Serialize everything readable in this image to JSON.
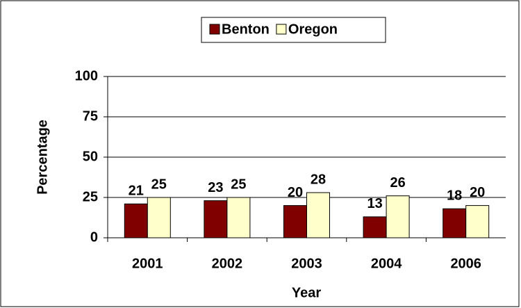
{
  "chart_data": {
    "type": "bar",
    "categories": [
      "2001",
      "2002",
      "2003",
      "2004",
      "2006"
    ],
    "series": [
      {
        "name": "Benton",
        "color": "#800000",
        "values": [
          21,
          23,
          20,
          13,
          18
        ]
      },
      {
        "name": "Oregon",
        "color": "#ffffcc",
        "values": [
          25,
          25,
          28,
          26,
          20
        ]
      }
    ],
    "xlabel": "Year",
    "ylabel": "Percentage",
    "ylim": [
      0,
      100
    ],
    "yticks": [
      0,
      25,
      50,
      75,
      100
    ],
    "grid": true,
    "legend": "top"
  }
}
